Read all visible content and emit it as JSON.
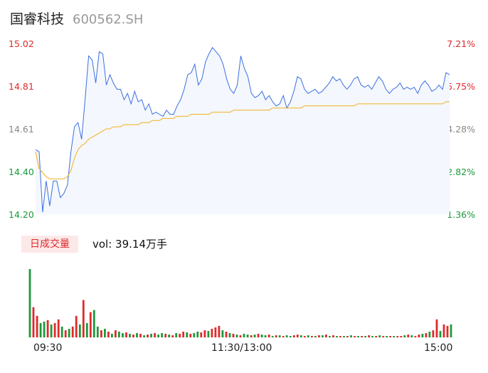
{
  "header": {
    "name": "国睿科技",
    "code": "600562.SH"
  },
  "volume_panel": {
    "tag": "日成交量",
    "volume_text": "vol: 39.14万手"
  },
  "colors": {
    "price_line": "#3b6fe0",
    "avg_line": "#f2b01e",
    "up": "#e0292b",
    "down": "#1a9a3a",
    "area_fill": "#f4f7fd"
  },
  "chart_data": [
    {
      "type": "line",
      "title": "",
      "price_axis_ticks": [
        "15.02",
        "14.81",
        "14.61",
        "14.40",
        "14.20"
      ],
      "pct_axis_ticks": [
        "7.21%",
        "5.75%",
        "4.28%",
        "2.82%",
        "1.36%"
      ],
      "ylim": [
        14.2,
        15.02
      ],
      "x_ticks": [
        "09:30",
        "11:30/13:00",
        "15:00"
      ],
      "series": [
        {
          "role": "price",
          "values": [
            14.51,
            14.5,
            14.21,
            14.36,
            14.24,
            14.36,
            14.36,
            14.28,
            14.3,
            14.34,
            14.5,
            14.62,
            14.64,
            14.56,
            14.75,
            14.96,
            14.94,
            14.83,
            14.98,
            14.97,
            14.82,
            14.87,
            14.83,
            14.8,
            14.8,
            14.75,
            14.78,
            14.73,
            14.79,
            14.74,
            14.75,
            14.7,
            14.73,
            14.68,
            14.69,
            14.68,
            14.67,
            14.7,
            14.68,
            14.68,
            14.72,
            14.75,
            14.8,
            14.87,
            14.88,
            14.92,
            14.82,
            14.85,
            14.93,
            14.97,
            15.0,
            14.98,
            14.96,
            14.92,
            14.85,
            14.8,
            14.78,
            14.82,
            14.96,
            14.9,
            14.86,
            14.78,
            14.76,
            14.77,
            14.79,
            14.75,
            14.77,
            14.74,
            14.72,
            14.73,
            14.77,
            14.71,
            14.74,
            14.79,
            14.86,
            14.85,
            14.8,
            14.78,
            14.79,
            14.8,
            14.78,
            14.79,
            14.81,
            14.83,
            14.86,
            14.84,
            14.85,
            14.82,
            14.8,
            14.82,
            14.85,
            14.86,
            14.82,
            14.81,
            14.82,
            14.8,
            14.83,
            14.86,
            14.84,
            14.8,
            14.78,
            14.8,
            14.81,
            14.83,
            14.8,
            14.81,
            14.8,
            14.81,
            14.78,
            14.82,
            14.84,
            14.82,
            14.79,
            14.8,
            14.82,
            14.8,
            14.88,
            14.87
          ]
        },
        {
          "role": "average",
          "values": [
            14.5,
            14.42,
            14.4,
            14.38,
            14.37,
            14.37,
            14.37,
            14.37,
            14.37,
            14.38,
            14.41,
            14.47,
            14.51,
            14.53,
            14.54,
            14.56,
            14.57,
            14.58,
            14.59,
            14.6,
            14.61,
            14.61,
            14.62,
            14.62,
            14.62,
            14.63,
            14.63,
            14.63,
            14.63,
            14.63,
            14.64,
            14.64,
            14.64,
            14.65,
            14.65,
            14.65,
            14.66,
            14.66,
            14.66,
            14.66,
            14.67,
            14.67,
            14.67,
            14.67,
            14.68,
            14.68,
            14.68,
            14.68,
            14.68,
            14.68,
            14.69,
            14.69,
            14.69,
            14.69,
            14.69,
            14.69,
            14.7,
            14.7,
            14.7,
            14.7,
            14.7,
            14.7,
            14.7,
            14.7,
            14.7,
            14.7,
            14.7,
            14.71,
            14.71,
            14.71,
            14.71,
            14.71,
            14.71,
            14.71,
            14.71,
            14.71,
            14.72,
            14.72,
            14.72,
            14.72,
            14.72,
            14.72,
            14.72,
            14.72,
            14.72,
            14.72,
            14.72,
            14.72,
            14.72,
            14.72,
            14.72,
            14.73,
            14.73,
            14.73,
            14.73,
            14.73,
            14.73,
            14.73,
            14.73,
            14.73,
            14.73,
            14.73,
            14.73,
            14.73,
            14.73,
            14.73,
            14.73,
            14.73,
            14.73,
            14.73,
            14.73,
            14.73,
            14.73,
            14.73,
            14.73,
            14.73,
            14.74,
            14.74
          ]
        }
      ]
    },
    {
      "type": "bar",
      "title": "",
      "series": [
        {
          "name": "volume",
          "values": [
            95,
            42,
            30,
            20,
            22,
            24,
            18,
            20,
            25,
            15,
            10,
            12,
            15,
            30,
            18,
            52,
            20,
            35,
            38,
            15,
            10,
            12,
            8,
            5,
            10,
            8,
            6,
            7,
            5,
            4,
            6,
            5,
            3,
            4,
            5,
            6,
            4,
            6,
            5,
            4,
            3,
            6,
            5,
            8,
            7,
            5,
            6,
            8,
            7,
            10,
            9,
            12,
            14,
            16,
            10,
            8,
            6,
            5,
            4,
            3,
            5,
            4,
            3,
            4,
            5,
            4,
            3,
            4,
            2,
            3,
            3,
            2,
            3,
            2,
            3,
            4,
            3,
            2,
            3,
            2,
            2,
            3,
            3,
            4,
            2,
            3,
            2,
            2,
            2,
            2,
            3,
            2,
            2,
            2,
            2,
            3,
            2,
            2,
            3,
            2,
            2,
            2,
            2,
            2,
            2,
            3,
            4,
            3,
            2,
            4,
            5,
            6,
            8,
            10,
            25,
            9,
            18,
            16,
            18
          ],
          "up": [
            0,
            1,
            1,
            0,
            0,
            1,
            0,
            1,
            1,
            0,
            1,
            0,
            1,
            1,
            0,
            1,
            0,
            1,
            0,
            0,
            1,
            0,
            1,
            0,
            1,
            0,
            0,
            1,
            0,
            1,
            0,
            1,
            0,
            1,
            0,
            1,
            0,
            0,
            1,
            0,
            1,
            0,
            1,
            1,
            0,
            1,
            0,
            0,
            1,
            1,
            0,
            1,
            1,
            1,
            0,
            1,
            0,
            1,
            0,
            1,
            0,
            0,
            1,
            0,
            1,
            0,
            0,
            1,
            0,
            1,
            0,
            1,
            0,
            0,
            1,
            1,
            0,
            1,
            0,
            1,
            0,
            1,
            0,
            1,
            0,
            1,
            0,
            1,
            0,
            1,
            0,
            1,
            0,
            1,
            0,
            1,
            0,
            1,
            0,
            1,
            0,
            1,
            0,
            1,
            1,
            0,
            1,
            0,
            1,
            1,
            0,
            1,
            0,
            1,
            1,
            0,
            1,
            1,
            0
          ]
        }
      ]
    }
  ]
}
